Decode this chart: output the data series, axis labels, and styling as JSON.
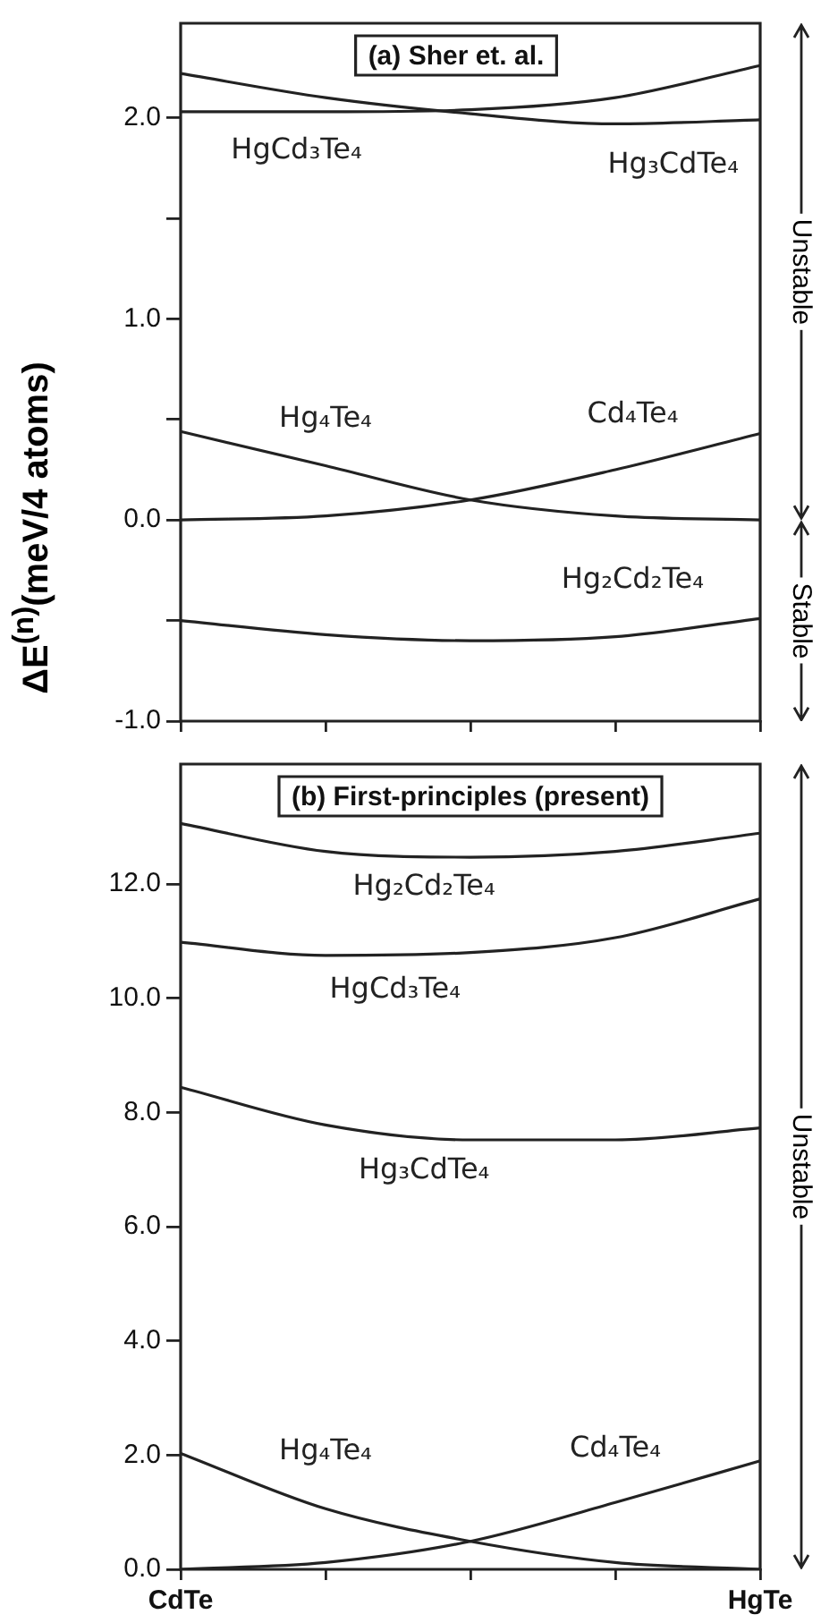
{
  "chart_data": [
    {
      "type": "line",
      "title": "(a) Sher et. al.",
      "categories": [
        null,
        null,
        null,
        null,
        null
      ],
      "series": [
        {
          "name": "HgCd₃Te₄",
          "color": "#222222",
          "values": [
            2.03,
            2.03,
            2.04,
            2.1,
            2.26
          ]
        },
        {
          "name": "Hg₃CdTe₄",
          "color": "#222222",
          "values": [
            2.22,
            2.1,
            2.02,
            1.97,
            1.99
          ]
        },
        {
          "name": "Hg₄Te₄",
          "color": "#222222",
          "values": [
            0.44,
            0.27,
            0.1,
            0.02,
            0.0
          ]
        },
        {
          "name": "Cd₄Te₄",
          "color": "#222222",
          "values": [
            0.0,
            0.02,
            0.1,
            0.25,
            0.43
          ]
        },
        {
          "name": "Hg₂Cd₂Te₄",
          "color": "#222222",
          "values": [
            -0.5,
            -0.57,
            -0.6,
            -0.58,
            -0.49
          ]
        }
      ],
      "ylim": [
        -1.0,
        2.47
      ],
      "yticks": [
        {
          "value": -1,
          "label": "-1.0"
        },
        {
          "value": -0.5,
          "label": null
        },
        {
          "value": 0,
          "label": "0.0"
        },
        {
          "value": 0.5,
          "label": null
        },
        {
          "value": 1,
          "label": "1.0"
        },
        {
          "value": 1.5,
          "label": null
        },
        {
          "value": 2,
          "label": "2.0"
        }
      ],
      "tick_labels": "y",
      "annotations": [
        "Unstable",
        "Stable"
      ],
      "grid": false,
      "legend": false,
      "marker": "none",
      "line_style": "solid"
    },
    {
      "type": "line",
      "title": "(b) First-principles (present)",
      "ylabel": "ΔE$^{(n)}$(meV/4 atoms)",
      "categories": [
        "CdTe",
        null,
        null,
        null,
        "HgTe"
      ],
      "series": [
        {
          "name": "HgCd₃Te₄",
          "color": "#222222",
          "values": [
            10.98,
            10.75,
            10.8,
            11.06,
            11.74
          ]
        },
        {
          "name": "Hg₃CdTe₄",
          "color": "#222222",
          "values": [
            8.44,
            7.78,
            7.52,
            7.52,
            7.73
          ]
        },
        {
          "name": "Hg₄Te₄",
          "color": "#222222",
          "values": [
            2.03,
            1.06,
            0.49,
            0.12,
            0.0
          ]
        },
        {
          "name": "Cd₄Te₄",
          "color": "#222222",
          "values": [
            0.0,
            0.12,
            0.49,
            1.17,
            1.9
          ]
        },
        {
          "name": "Hg₂Cd₂Te₄",
          "color": "#222222",
          "values": [
            13.06,
            12.57,
            12.47,
            12.57,
            12.89
          ]
        }
      ],
      "ylim": [
        0,
        14.1
      ],
      "yticks": [
        {
          "value": 0,
          "label": "0.0"
        },
        {
          "value": 2,
          "label": "2.0"
        },
        {
          "value": 4,
          "label": "4.0"
        },
        {
          "value": 6,
          "label": "6.0"
        },
        {
          "value": 8,
          "label": "8.0"
        },
        {
          "value": 10,
          "label": "10.0"
        },
        {
          "value": 12,
          "label": "12.0"
        }
      ],
      "annotations": [
        "Unstable"
      ],
      "grid": false,
      "legend": false,
      "marker": "none",
      "line_style": "solid"
    }
  ]
}
